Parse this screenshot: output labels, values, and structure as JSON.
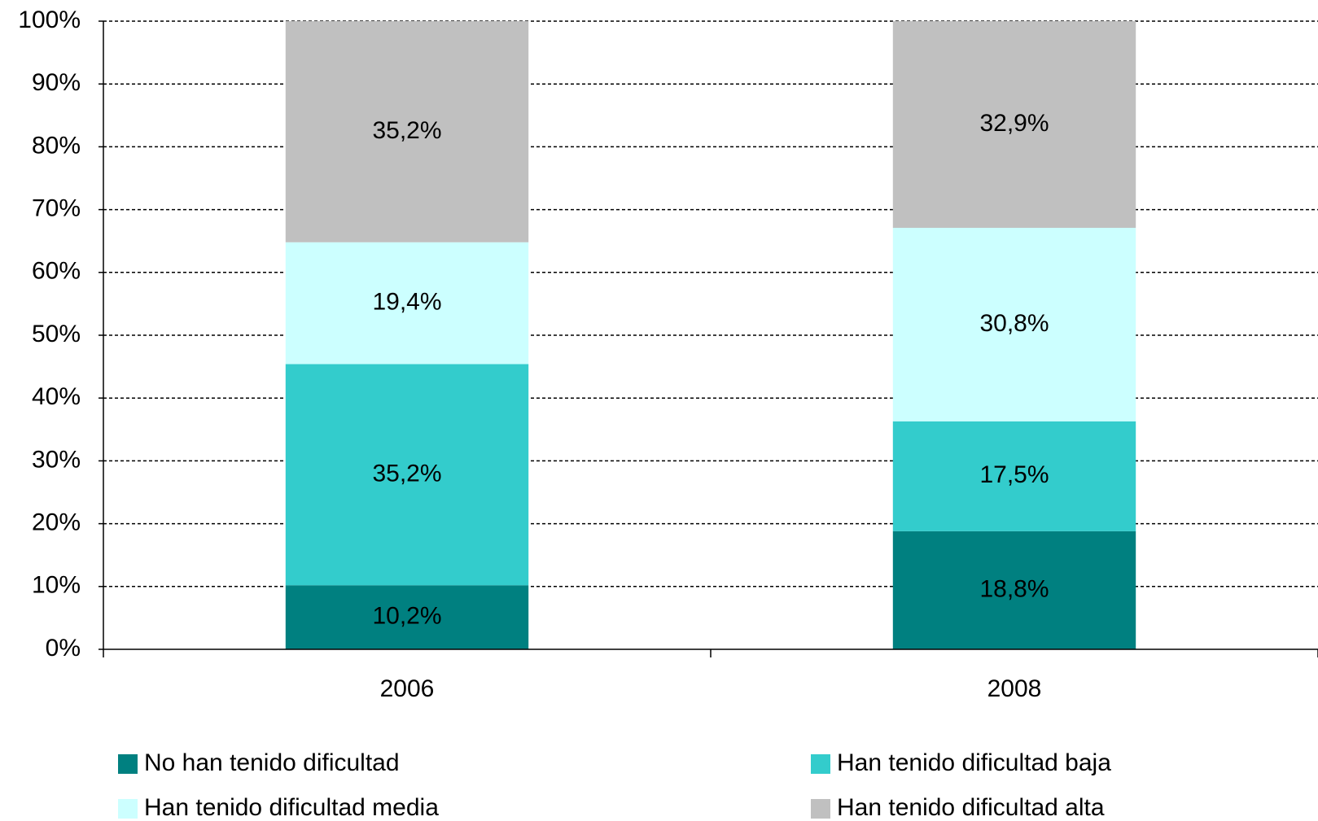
{
  "chart_data": {
    "type": "stacked_bar",
    "categories": [
      "2006",
      "2008"
    ],
    "series": [
      {
        "name": "No han tenido dificultad",
        "color": "#008080",
        "values": [
          10.2,
          18.8
        ],
        "value_labels": [
          "10,2%",
          "18,8%"
        ]
      },
      {
        "name": "Han tenido dificultad baja",
        "color": "#33cccc",
        "values": [
          35.2,
          17.5
        ],
        "value_labels": [
          "35,2%",
          "17,5%"
        ]
      },
      {
        "name": "Han tenido dificultad media",
        "color": "#ccffff",
        "values": [
          19.4,
          30.8
        ],
        "value_labels": [
          "19,4%",
          "30,8%"
        ]
      },
      {
        "name": "Han tenido dificultad alta",
        "color": "#c0c0c0",
        "values": [
          35.2,
          32.9
        ],
        "value_labels": [
          "35,2%",
          "32,9%"
        ]
      }
    ],
    "ylim": [
      0,
      100
    ],
    "yticks": [
      {
        "value": 0,
        "label": "0%"
      },
      {
        "value": 10,
        "label": "10%"
      },
      {
        "value": 20,
        "label": "20%"
      },
      {
        "value": 30,
        "label": "30%"
      },
      {
        "value": 40,
        "label": "40%"
      },
      {
        "value": 50,
        "label": "50%"
      },
      {
        "value": 60,
        "label": "60%"
      },
      {
        "value": 70,
        "label": "70%"
      },
      {
        "value": 80,
        "label": "80%"
      },
      {
        "value": 90,
        "label": "90%"
      },
      {
        "value": 100,
        "label": "100%"
      }
    ],
    "grid": true
  }
}
